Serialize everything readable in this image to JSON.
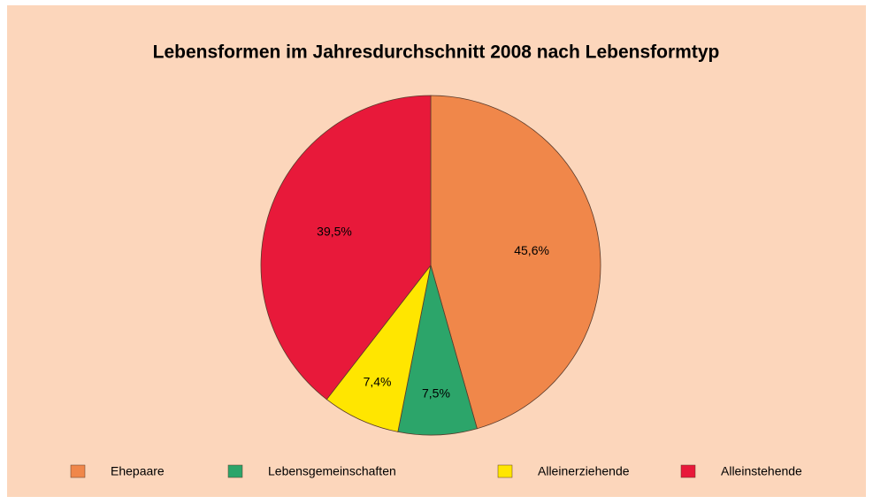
{
  "chart_data": {
    "type": "pie",
    "title": "Lebensformen im Jahresdurchschnitt 2008 nach Lebensformtyp",
    "categories": [
      "Ehepaare",
      "Lebensgemeinschaften",
      "Alleinerziehende",
      "Alleinstehende"
    ],
    "values": [
      45.6,
      7.5,
      7.4,
      39.5
    ],
    "value_labels": [
      "45,6%",
      "7,5%",
      "7,4%",
      "39,5%"
    ],
    "colors": [
      "#f0874a",
      "#2ca56a",
      "#ffe600",
      "#e8193a"
    ]
  }
}
